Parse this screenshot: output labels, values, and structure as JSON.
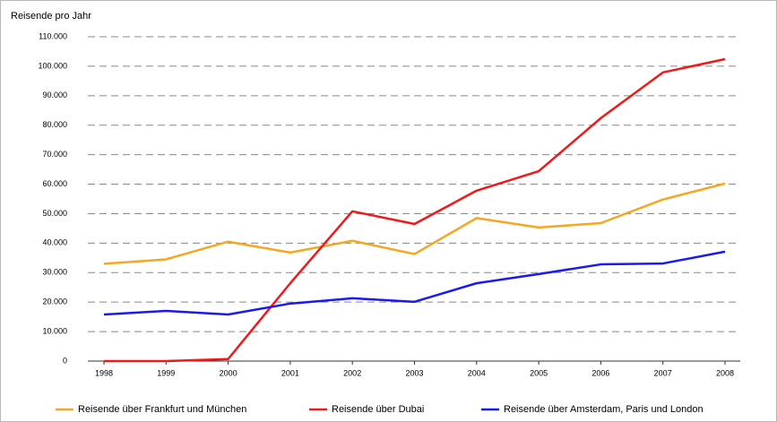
{
  "chart_data": {
    "type": "line",
    "title": "Reisende pro Jahr",
    "categories": [
      "1998",
      "1999",
      "2000",
      "2001",
      "2002",
      "2003",
      "2004",
      "2005",
      "2006",
      "2007",
      "2008"
    ],
    "series": [
      {
        "name": "Reisende über Frankfurt und München",
        "color": "#f5a623",
        "values": [
          33000,
          34500,
          40500,
          36800,
          40800,
          36300,
          48500,
          45300,
          46800,
          54800,
          60200
        ]
      },
      {
        "name": "Reisende über Dubai",
        "color": "#f01818",
        "values": [
          0,
          0,
          700,
          26400,
          50800,
          46500,
          57800,
          64400,
          82400,
          97900,
          102400
        ]
      },
      {
        "name": "Reisende über Amsterdam, Paris und London",
        "color": "#1a1af0",
        "values": [
          15800,
          17000,
          15800,
          19500,
          21300,
          20100,
          26400,
          29500,
          32800,
          33100,
          37100
        ]
      }
    ],
    "ylim": [
      0,
      110000
    ],
    "yticks": [
      0,
      {
        "value": 10000,
        "label": "10.000"
      },
      {
        "value": 20000,
        "label": "20.000"
      },
      {
        "value": 30000,
        "label": "30.000"
      },
      {
        "value": 40000,
        "label": "40.000"
      },
      {
        "value": 50000,
        "label": "50.000"
      },
      {
        "value": 60000,
        "label": "60.000"
      },
      {
        "value": 70000,
        "label": "70.000"
      },
      {
        "value": 80000,
        "label": "80.000"
      },
      {
        "value": 90000,
        "label": "90.000"
      },
      {
        "value": 100000,
        "label": "100.000"
      },
      {
        "value": 110000,
        "label": "110.000"
      }
    ],
    "grid": true,
    "legend": "bottom"
  }
}
